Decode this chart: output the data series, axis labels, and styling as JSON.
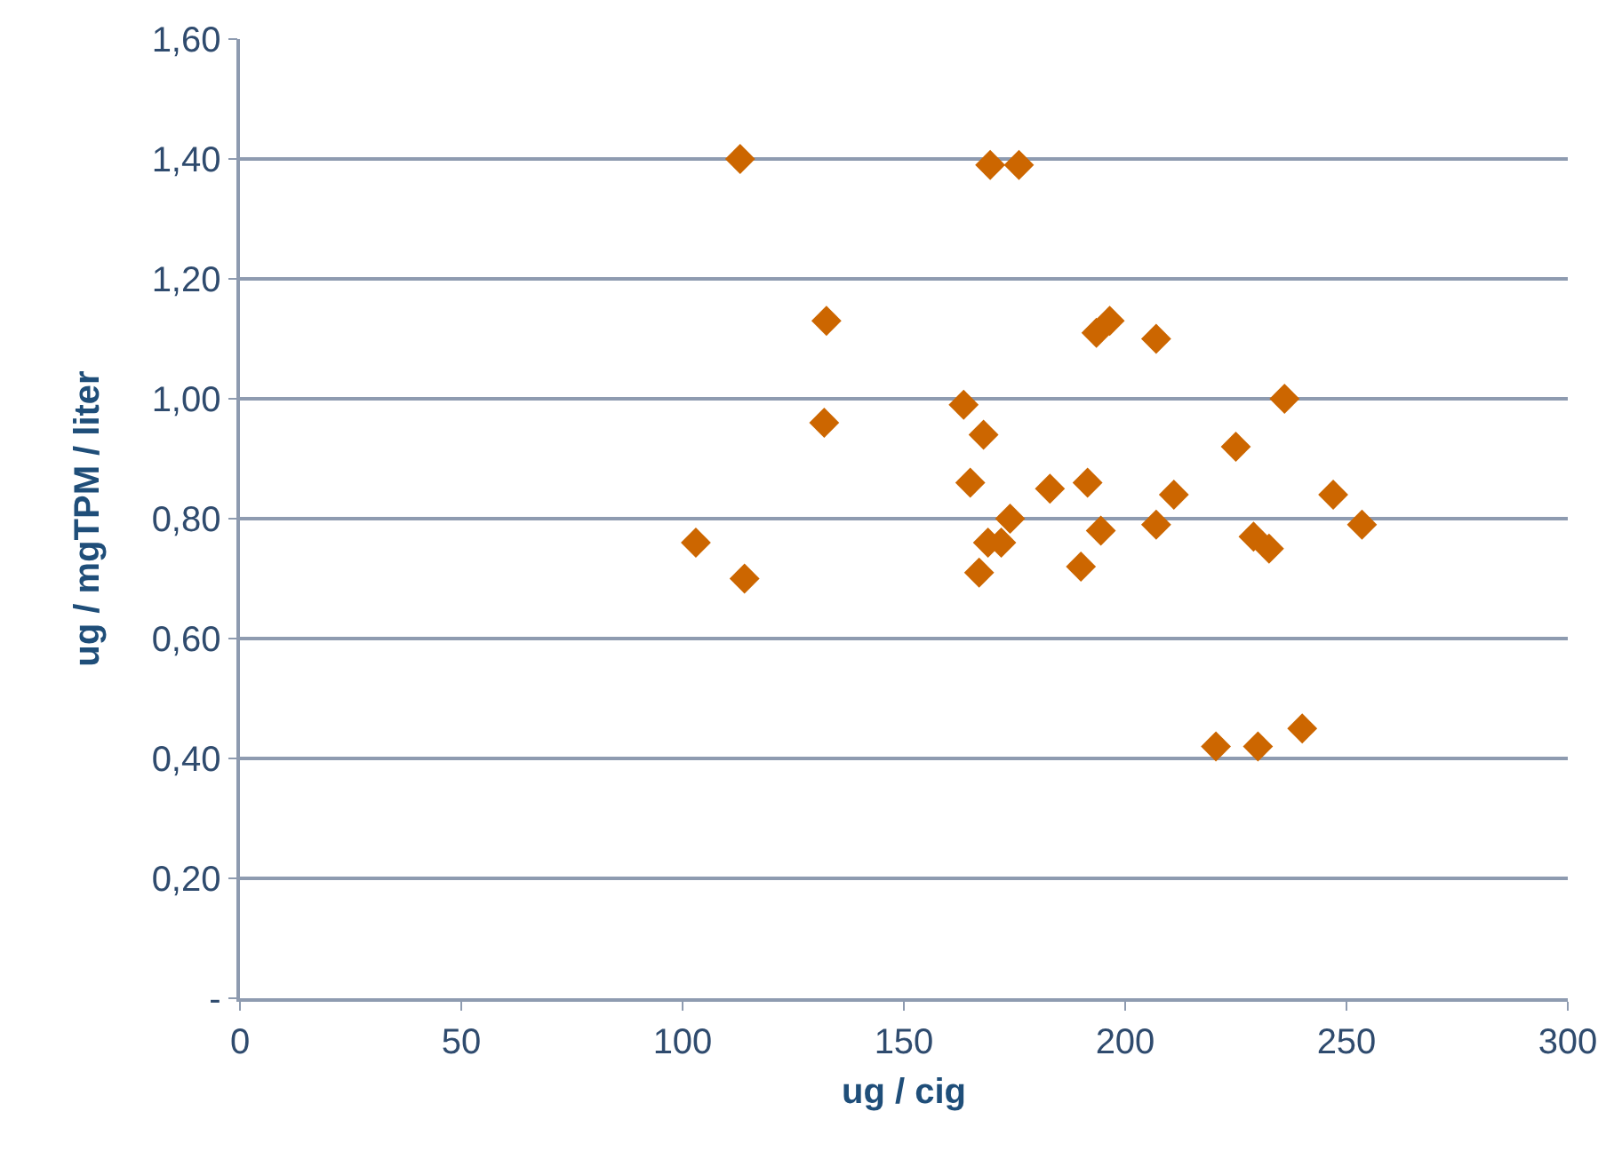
{
  "chart_data": {
    "type": "scatter",
    "xlabel": "ug / cig",
    "ylabel": "ug / mgTPM / liter",
    "marker": "diamond",
    "grid": "y",
    "legend": false,
    "xlim": [
      0,
      300
    ],
    "xticks": [
      0,
      50,
      100,
      150,
      200,
      250,
      300
    ],
    "ylim": [
      0,
      1.6
    ],
    "yticks": [
      {
        "value": 0,
        "label": "-"
      },
      {
        "value": 0.2,
        "label": "0,20"
      },
      {
        "value": 0.4,
        "label": "0,40"
      },
      {
        "value": 0.6,
        "label": "0,60"
      },
      {
        "value": 0.8,
        "label": "0,80"
      },
      {
        "value": 1.0,
        "label": "1,00"
      },
      {
        "value": 1.2,
        "label": "1,20"
      },
      {
        "value": 1.4,
        "label": "1,40"
      },
      {
        "value": 1.6,
        "label": "1,60"
      }
    ],
    "series": [
      {
        "color": "#cc6600",
        "x": [
          103,
          113,
          114,
          132.5,
          132,
          163.5,
          165,
          168,
          167,
          169.5,
          176,
          169,
          172,
          174,
          183,
          191.5,
          190,
          194.5,
          193.5,
          196.5,
          207,
          207,
          211,
          225,
          236,
          229,
          232.5,
          220.5,
          230,
          240,
          247,
          253.5
        ],
        "values": [
          0.76,
          1.4,
          0.7,
          1.13,
          0.96,
          0.99,
          0.86,
          0.94,
          0.71,
          1.39,
          1.39,
          0.76,
          0.76,
          0.8,
          0.85,
          0.86,
          0.72,
          0.78,
          1.11,
          1.13,
          1.1,
          0.79,
          0.84,
          0.92,
          1.0,
          0.77,
          0.75,
          0.42,
          0.42,
          0.45,
          0.84,
          0.79
        ]
      }
    ]
  }
}
